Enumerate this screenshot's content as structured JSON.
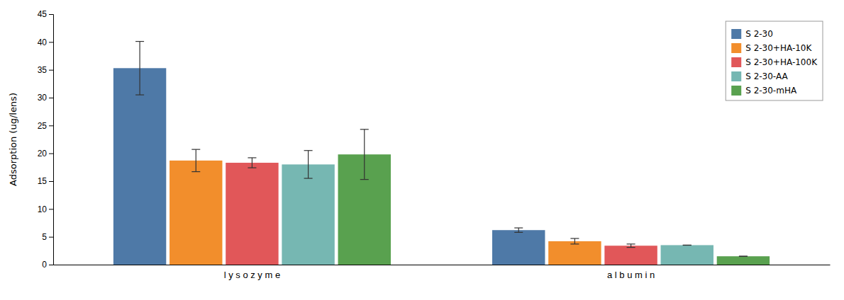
{
  "chart_data": {
    "type": "bar",
    "categories": [
      "l y s o z y m e",
      "a l b u m i n"
    ],
    "series": [
      {
        "name": "S 2-30",
        "values": [
          35.3,
          6.2
        ],
        "errors": [
          4.8,
          0.4
        ]
      },
      {
        "name": "S 2-30+HA-10K",
        "values": [
          18.7,
          4.2
        ],
        "errors": [
          2.0,
          0.5
        ]
      },
      {
        "name": "S 2-30+HA-100K",
        "values": [
          18.3,
          3.4
        ],
        "errors": [
          0.9,
          0.3
        ]
      },
      {
        "name": "S 2-30-AA",
        "values": [
          18.0,
          3.5
        ],
        "errors": [
          2.5,
          0.0
        ]
      },
      {
        "name": "S 2-30-mHA",
        "values": [
          19.8,
          1.5
        ],
        "errors": [
          4.5,
          0.0
        ]
      }
    ],
    "ylabel": "Adsorption (ug/lens)",
    "ylim": [
      0,
      45
    ],
    "yticks": [
      0,
      5,
      10,
      15,
      20,
      25,
      30,
      35,
      40,
      45
    ],
    "grid": false,
    "legend": "upper right"
  }
}
